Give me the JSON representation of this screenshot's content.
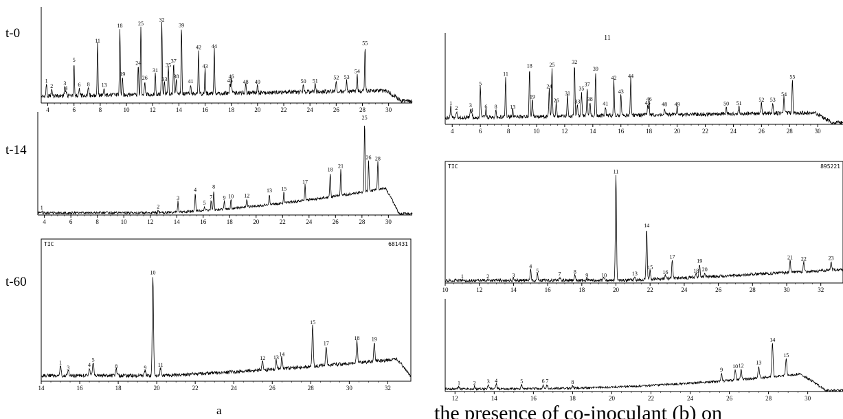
{
  "panel_labels": [
    "t-0",
    "t-14",
    "t-60"
  ],
  "caption_a": "a",
  "overlap_text": "the presence of co-inoculant (b) on",
  "chart_data": [
    {
      "id": "a-t0",
      "type": "line",
      "title": "",
      "xlabel": "",
      "ylabel": "",
      "xlim": [
        3.5,
        31.8
      ],
      "xticks": [
        4,
        6,
        8,
        10,
        12,
        14,
        16,
        18,
        20,
        22,
        24,
        26,
        28,
        30
      ],
      "peaks": [
        {
          "label": "1",
          "x": 3.9,
          "h": 0.15
        },
        {
          "label": "2",
          "x": 4.3,
          "h": 0.09
        },
        {
          "label": "3",
          "x": 5.3,
          "h": 0.12
        },
        {
          "label": "4",
          "x": 5.4,
          "h": 0.06
        },
        {
          "label": "5",
          "x": 6.0,
          "h": 0.4
        },
        {
          "label": "6",
          "x": 6.4,
          "h": 0.1
        },
        {
          "label": "8",
          "x": 7.1,
          "h": 0.1
        },
        {
          "label": "11",
          "x": 7.8,
          "h": 0.63
        },
        {
          "label": "13",
          "x": 8.3,
          "h": 0.09
        },
        {
          "label": "18",
          "x": 9.5,
          "h": 0.81
        },
        {
          "label": "19",
          "x": 9.7,
          "h": 0.22
        },
        {
          "label": "24",
          "x": 10.9,
          "h": 0.35
        },
        {
          "label": "25",
          "x": 11.1,
          "h": 0.83
        },
        {
          "label": "26",
          "x": 11.4,
          "h": 0.17
        },
        {
          "label": "31",
          "x": 12.2,
          "h": 0.26
        },
        {
          "label": "32",
          "x": 12.7,
          "h": 0.87
        },
        {
          "label": "33",
          "x": 12.9,
          "h": 0.15
        },
        {
          "label": "35",
          "x": 13.2,
          "h": 0.32
        },
        {
          "label": "37",
          "x": 13.6,
          "h": 0.37
        },
        {
          "label": "38",
          "x": 13.8,
          "h": 0.18
        },
        {
          "label": "39",
          "x": 14.2,
          "h": 0.8
        },
        {
          "label": "41",
          "x": 14.9,
          "h": 0.12
        },
        {
          "label": "42",
          "x": 15.5,
          "h": 0.53
        },
        {
          "label": "43",
          "x": 16.0,
          "h": 0.3
        },
        {
          "label": "44",
          "x": 16.7,
          "h": 0.54
        },
        {
          "label": "45",
          "x": 17.9,
          "h": 0.12
        },
        {
          "label": "46",
          "x": 18.0,
          "h": 0.17
        },
        {
          "label": "48",
          "x": 19.1,
          "h": 0.1
        },
        {
          "label": "49",
          "x": 20.0,
          "h": 0.1
        },
        {
          "label": "50",
          "x": 23.5,
          "h": 0.1
        },
        {
          "label": "51",
          "x": 24.4,
          "h": 0.1
        },
        {
          "label": "52",
          "x": 26.0,
          "h": 0.14
        },
        {
          "label": "53",
          "x": 26.8,
          "h": 0.14
        },
        {
          "label": "54",
          "x": 27.6,
          "h": 0.21
        },
        {
          "label": "55",
          "x": 28.2,
          "h": 0.55
        }
      ]
    },
    {
      "id": "a-t14",
      "type": "line",
      "title": "",
      "xlabel": "",
      "ylabel": "",
      "xlim": [
        3.5,
        31.8
      ],
      "xticks": [
        4,
        6,
        8,
        10,
        12,
        14,
        16,
        18,
        20,
        22,
        24,
        26,
        28,
        30
      ],
      "peaks": [
        {
          "label": "1",
          "x": 3.8,
          "h": 0.02
        },
        {
          "label": "2",
          "x": 12.6,
          "h": 0.03
        },
        {
          "label": "3",
          "x": 14.1,
          "h": 0.12
        },
        {
          "label": "4",
          "x": 15.4,
          "h": 0.2
        },
        {
          "label": "5",
          "x": 16.1,
          "h": 0.05
        },
        {
          "label": "7",
          "x": 16.6,
          "h": 0.11
        },
        {
          "label": "8",
          "x": 16.8,
          "h": 0.22
        },
        {
          "label": "9",
          "x": 17.6,
          "h": 0.09
        },
        {
          "label": "10",
          "x": 18.1,
          "h": 0.1
        },
        {
          "label": "12",
          "x": 19.3,
          "h": 0.09
        },
        {
          "label": "13",
          "x": 21.0,
          "h": 0.12
        },
        {
          "label": "15",
          "x": 22.1,
          "h": 0.12
        },
        {
          "label": "17",
          "x": 23.7,
          "h": 0.17
        },
        {
          "label": "18",
          "x": 25.6,
          "h": 0.27
        },
        {
          "label": "21",
          "x": 26.4,
          "h": 0.29
        },
        {
          "label": "25",
          "x": 28.2,
          "h": 0.79
        },
        {
          "label": "26",
          "x": 28.5,
          "h": 0.34
        },
        {
          "label": "28",
          "x": 29.2,
          "h": 0.31
        }
      ]
    },
    {
      "id": "a-t60",
      "type": "line",
      "title": "TIC",
      "scale_label": "681431",
      "xlabel": "",
      "ylabel": "",
      "xlim": [
        14,
        33.2
      ],
      "xticks": [
        14,
        16,
        18,
        20,
        22,
        24,
        26,
        28,
        30,
        32
      ],
      "peaks": [
        {
          "label": "1",
          "x": 15.0,
          "h": 0.08
        },
        {
          "label": "3",
          "x": 15.4,
          "h": 0.04
        },
        {
          "label": "4",
          "x": 16.5,
          "h": 0.06
        },
        {
          "label": "5",
          "x": 16.7,
          "h": 0.1
        },
        {
          "label": "8",
          "x": 17.9,
          "h": 0.05
        },
        {
          "label": "9",
          "x": 19.4,
          "h": 0.04
        },
        {
          "label": "10",
          "x": 19.8,
          "h": 0.78
        },
        {
          "label": "11",
          "x": 20.2,
          "h": 0.06
        },
        {
          "label": "12",
          "x": 25.5,
          "h": 0.07
        },
        {
          "label": "13",
          "x": 26.2,
          "h": 0.07
        },
        {
          "label": "14",
          "x": 26.5,
          "h": 0.09
        },
        {
          "label": "15",
          "x": 28.1,
          "h": 0.32
        },
        {
          "label": "17",
          "x": 28.8,
          "h": 0.15
        },
        {
          "label": "18",
          "x": 30.4,
          "h": 0.17
        },
        {
          "label": "19",
          "x": 31.3,
          "h": 0.15
        }
      ]
    },
    {
      "id": "b-t0",
      "type": "line",
      "title": "",
      "xlabel": "",
      "ylabel": "",
      "xlim": [
        3.5,
        31.8
      ],
      "xticks": [
        4,
        6,
        8,
        10,
        12,
        14,
        16,
        18,
        20,
        22,
        24,
        26,
        28,
        30
      ],
      "peaks": [
        {
          "label": "1",
          "x": 3.9,
          "h": 0.15
        },
        {
          "label": "2",
          "x": 4.3,
          "h": 0.09
        },
        {
          "label": "3",
          "x": 5.3,
          "h": 0.12
        },
        {
          "label": "4",
          "x": 5.4,
          "h": 0.06
        },
        {
          "label": "5",
          "x": 6.0,
          "h": 0.4
        },
        {
          "label": "6",
          "x": 6.4,
          "h": 0.1
        },
        {
          "label": "8",
          "x": 7.1,
          "h": 0.1
        },
        {
          "label": "11",
          "x": 7.8,
          "h": 0.52
        },
        {
          "label": "13",
          "x": 8.3,
          "h": 0.09
        },
        {
          "label": "18",
          "x": 9.5,
          "h": 0.62
        },
        {
          "label": "19",
          "x": 9.7,
          "h": 0.22
        },
        {
          "label": "24",
          "x": 10.9,
          "h": 0.35
        },
        {
          "label": "25",
          "x": 11.1,
          "h": 0.63
        },
        {
          "label": "26",
          "x": 11.4,
          "h": 0.17
        },
        {
          "label": "31",
          "x": 12.2,
          "h": 0.26
        },
        {
          "label": "32",
          "x": 12.7,
          "h": 0.66
        },
        {
          "label": "33",
          "x": 12.9,
          "h": 0.15
        },
        {
          "label": "35",
          "x": 13.2,
          "h": 0.32
        },
        {
          "label": "37",
          "x": 13.6,
          "h": 0.37
        },
        {
          "label": "38",
          "x": 13.8,
          "h": 0.18
        },
        {
          "label": "39",
          "x": 14.2,
          "h": 0.57
        },
        {
          "label": "41",
          "x": 14.9,
          "h": 0.12
        },
        {
          "label": "42",
          "x": 15.5,
          "h": 0.45
        },
        {
          "label": "43",
          "x": 16.0,
          "h": 0.27
        },
        {
          "label": "44",
          "x": 16.7,
          "h": 0.47
        },
        {
          "label": "45",
          "x": 17.9,
          "h": 0.12
        },
        {
          "label": "46",
          "x": 18.0,
          "h": 0.17
        },
        {
          "label": "48",
          "x": 19.1,
          "h": 0.1
        },
        {
          "label": "49",
          "x": 20.0,
          "h": 0.1
        },
        {
          "label": "50",
          "x": 23.5,
          "h": 0.1
        },
        {
          "label": "51",
          "x": 24.4,
          "h": 0.1
        },
        {
          "label": "52",
          "x": 26.0,
          "h": 0.14
        },
        {
          "label": "53",
          "x": 26.8,
          "h": 0.14
        },
        {
          "label": "54",
          "x": 27.6,
          "h": 0.21
        },
        {
          "label": "55",
          "x": 28.2,
          "h": 0.43
        }
      ]
    },
    {
      "id": "b-t14",
      "type": "line",
      "title": "TIC",
      "scale_label": "895221",
      "xlabel": "",
      "ylabel": "",
      "xlim": [
        10,
        33.3
      ],
      "xticks": [
        10,
        12,
        14,
        16,
        18,
        20,
        22,
        24,
        26,
        28,
        30,
        32
      ],
      "peaks": [
        {
          "label": "1",
          "x": 11.0,
          "h": 0.01
        },
        {
          "label": "2",
          "x": 12.5,
          "h": 0.01
        },
        {
          "label": "3",
          "x": 14.0,
          "h": 0.02
        },
        {
          "label": "4",
          "x": 15.0,
          "h": 0.1
        },
        {
          "label": "5",
          "x": 15.4,
          "h": 0.06
        },
        {
          "label": "7",
          "x": 16.7,
          "h": 0.03
        },
        {
          "label": "8",
          "x": 17.6,
          "h": 0.05
        },
        {
          "label": "9",
          "x": 18.3,
          "h": 0.02
        },
        {
          "label": "10",
          "x": 19.3,
          "h": 0.02
        },
        {
          "label": "11",
          "x": 20.0,
          "h": 0.98
        },
        {
          "label": "13",
          "x": 21.1,
          "h": 0.03
        },
        {
          "label": "14",
          "x": 21.8,
          "h": 0.47
        },
        {
          "label": "15",
          "x": 22.0,
          "h": 0.08
        },
        {
          "label": "16",
          "x": 22.9,
          "h": 0.03
        },
        {
          "label": "17",
          "x": 23.3,
          "h": 0.17
        },
        {
          "label": "18",
          "x": 24.7,
          "h": 0.03
        },
        {
          "label": "19",
          "x": 24.9,
          "h": 0.12
        },
        {
          "label": "20",
          "x": 25.2,
          "h": 0.04
        },
        {
          "label": "21",
          "x": 30.2,
          "h": 0.11
        },
        {
          "label": "22",
          "x": 31.0,
          "h": 0.09
        },
        {
          "label": "23",
          "x": 32.6,
          "h": 0.08
        }
      ]
    },
    {
      "id": "b-t60",
      "type": "line",
      "title": "",
      "xlabel": "",
      "ylabel": "",
      "xlim": [
        11.5,
        31.8
      ],
      "xticks": [
        12,
        14,
        16,
        18,
        20,
        22,
        24,
        26,
        28,
        30
      ],
      "peaks": [
        {
          "label": "1",
          "x": 12.2,
          "h": 0.03
        },
        {
          "label": "2",
          "x": 13.0,
          "h": 0.03
        },
        {
          "label": "3",
          "x": 13.7,
          "h": 0.05
        },
        {
          "label": "4",
          "x": 14.1,
          "h": 0.06
        },
        {
          "label": "5",
          "x": 15.4,
          "h": 0.05
        },
        {
          "label": "6",
          "x": 16.5,
          "h": 0.05
        },
        {
          "label": "7",
          "x": 16.7,
          "h": 0.05
        },
        {
          "label": "8",
          "x": 18.0,
          "h": 0.03
        },
        {
          "label": "9",
          "x": 25.6,
          "h": 0.1
        },
        {
          "label": "10",
          "x": 26.3,
          "h": 0.13
        },
        {
          "label": "12",
          "x": 26.6,
          "h": 0.13
        },
        {
          "label": "13",
          "x": 27.5,
          "h": 0.15
        },
        {
          "label": "14",
          "x": 28.2,
          "h": 0.42
        },
        {
          "label": "15",
          "x": 28.9,
          "h": 0.21
        }
      ]
    }
  ]
}
